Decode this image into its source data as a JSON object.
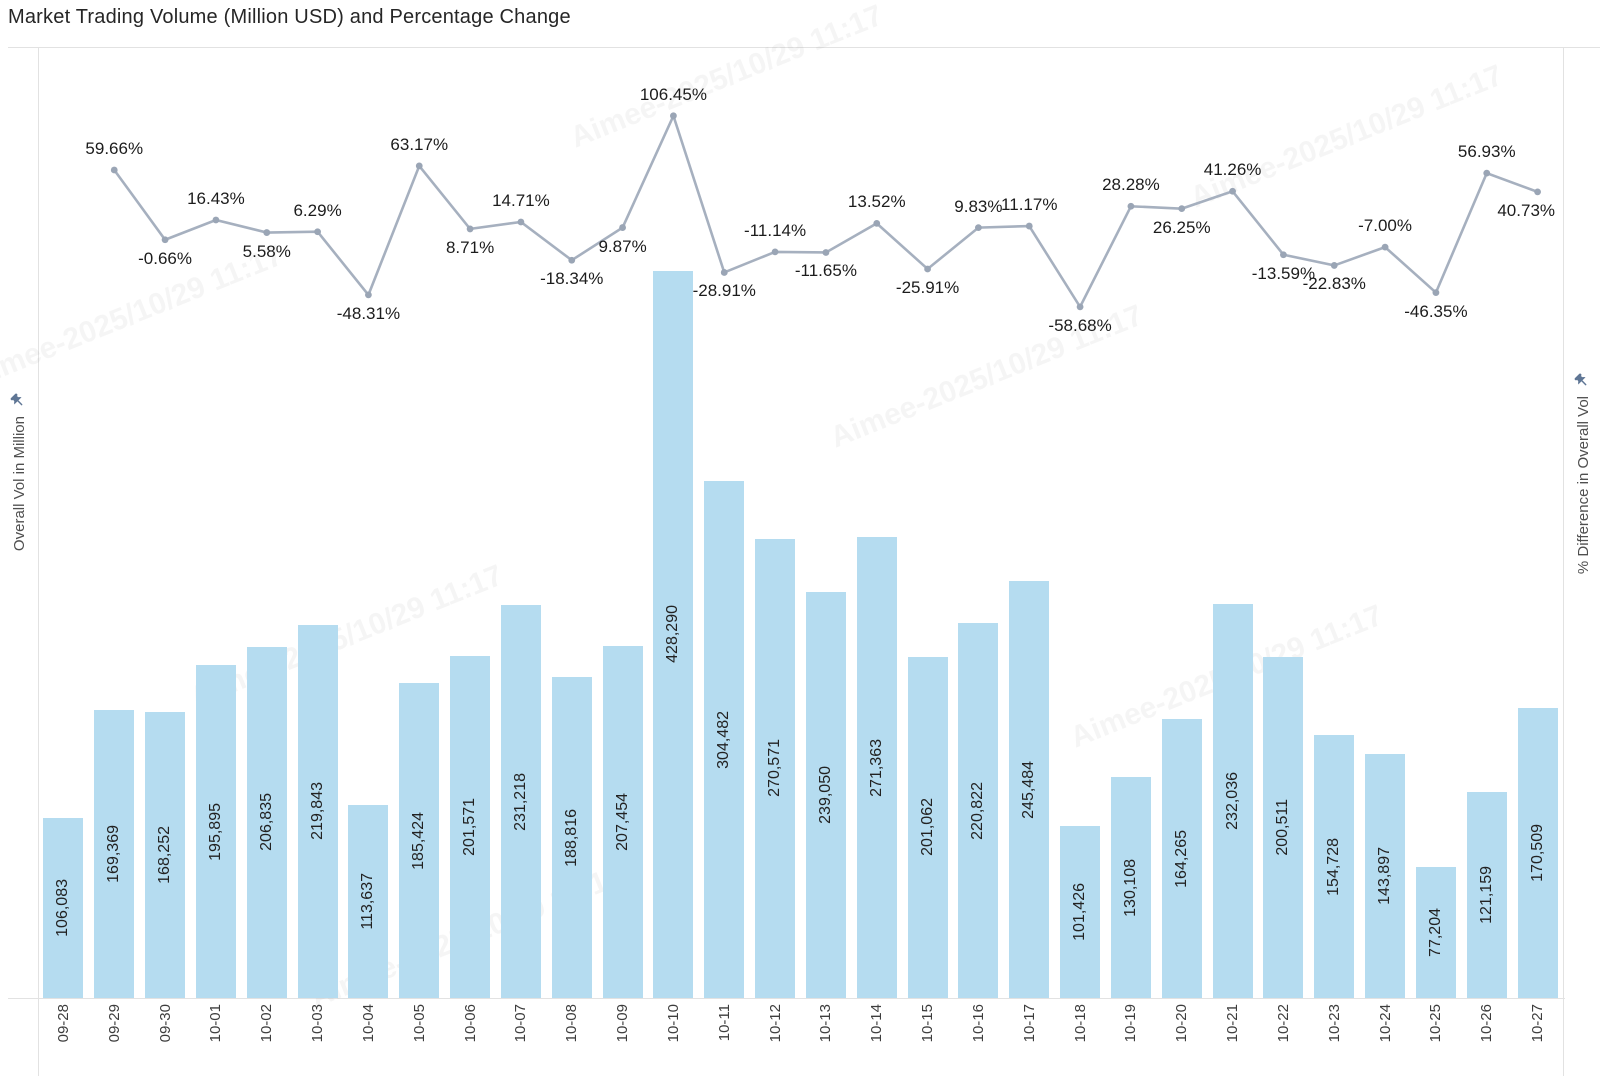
{
  "title": "Market Trading Volume (Million USD) and Percentage Change",
  "left_axis": {
    "label": "Overall Vol in Million",
    "pin_icon": "pushpin-icon"
  },
  "right_axis": {
    "label": "% Difference in Overall Vol",
    "pin_icon": "pushpin-icon"
  },
  "watermark": {
    "text": "Aimee-2025/10/29 11:17"
  },
  "colors": {
    "bar": "#b5dcf0",
    "line": "#a6b0bf",
    "marker": "#9aa5b5",
    "bar_label": "#222222",
    "pct_label": "#1c1c1c",
    "date_label": "#3d3d3d",
    "axis_label": "#4f4f4f",
    "border": "#e2e2e2",
    "title": "#262626",
    "pin": "#5f7695"
  },
  "chart_data": {
    "type": "bar+line combo",
    "title": "Market Trading Volume (Million USD) and Percentage Change",
    "categories": [
      "09-28",
      "09-29",
      "09-30",
      "10-01",
      "10-02",
      "10-03",
      "10-04",
      "10-05",
      "10-06",
      "10-07",
      "10-08",
      "10-09",
      "10-10",
      "10-11",
      "10-12",
      "10-13",
      "10-14",
      "10-15",
      "10-16",
      "10-17",
      "10-18",
      "10-19",
      "10-20",
      "10-21",
      "10-22",
      "10-23",
      "10-24",
      "10-25",
      "10-26",
      "10-27"
    ],
    "series": [
      {
        "name": "Overall Vol in Million",
        "type": "bar",
        "axis": "left",
        "values": [
          106083,
          169369,
          168252,
          195895,
          206835,
          219843,
          113637,
          185424,
          201571,
          231218,
          188816,
          207454,
          428290,
          304482,
          270571,
          239050,
          271363,
          201062,
          220822,
          245484,
          101426,
          130108,
          164265,
          232036,
          200511,
          154728,
          143897,
          77204,
          121159,
          170509
        ]
      },
      {
        "name": "% Difference in Overall Vol",
        "type": "line",
        "axis": "right",
        "categories": [
          "09-29",
          "09-30",
          "10-01",
          "10-02",
          "10-03",
          "10-04",
          "10-05",
          "10-06",
          "10-07",
          "10-08",
          "10-09",
          "10-10",
          "10-11",
          "10-12",
          "10-13",
          "10-14",
          "10-15",
          "10-16",
          "10-17",
          "10-18",
          "10-19",
          "10-20",
          "10-21",
          "10-22",
          "10-23",
          "10-24",
          "10-25",
          "10-26",
          "10-27"
        ],
        "values": [
          59.66,
          -0.66,
          16.43,
          5.58,
          6.29,
          -48.31,
          63.17,
          8.71,
          14.71,
          -18.34,
          9.87,
          106.45,
          -28.91,
          -11.14,
          -11.65,
          13.52,
          -25.91,
          9.83,
          11.17,
          -58.68,
          28.28,
          26.25,
          41.26,
          -13.59,
          -22.83,
          -7.0,
          -46.35,
          56.93,
          40.73
        ],
        "label_sides": [
          "above",
          "below",
          "above",
          "below",
          "above",
          "below",
          "above",
          "below",
          "above",
          "below",
          "below",
          "above",
          "below",
          "above",
          "below",
          "above",
          "below",
          "above",
          "above",
          "below",
          "above",
          "below",
          "above",
          "below",
          "below",
          "above",
          "below",
          "above",
          "below"
        ]
      }
    ],
    "ylabel_left": "Overall Vol in Million",
    "ylabel_right": "% Difference in Overall Vol",
    "y_left_range": [
      0,
      560000
    ],
    "y_right_visible_range": [
      -70,
      115
    ],
    "axis_tick_labels_shown": false,
    "gridlines": false,
    "legend": "none",
    "value_labels": "bars labeled with comma-formatted volumes (rotated 90°); line points labeled with percent change to 2 decimals"
  }
}
